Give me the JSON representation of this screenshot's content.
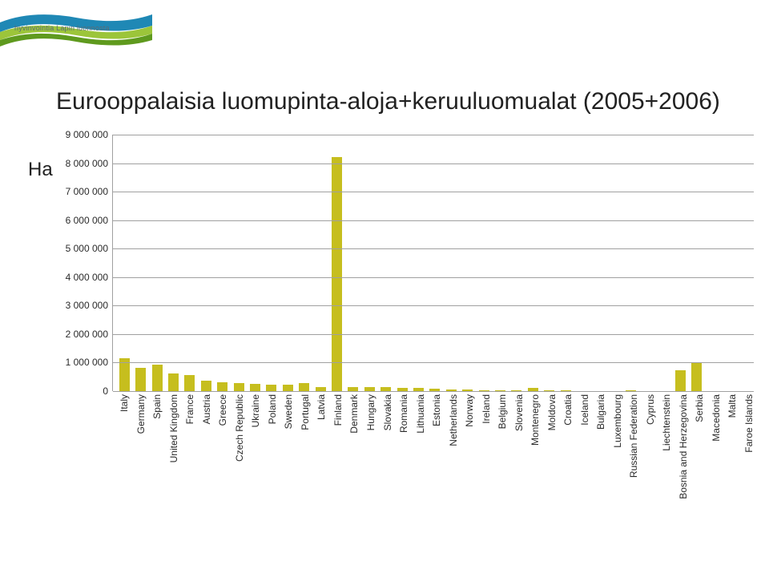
{
  "logo_text": "hyvinvointia Lapin luonnosta",
  "title": "Eurooppalaisia luomupinta-aloja+keruuluomualat (2005+2006)",
  "ylabel": "Ha",
  "chart": {
    "type": "bar",
    "ymax": 9000000,
    "ytick_step": 1000000,
    "ytick_labels": [
      "0",
      "1 000 000",
      "2 000 000",
      "3 000 000",
      "4 000 000",
      "5 000 000",
      "6 000 000",
      "7 000 000",
      "8 000 000",
      "9 000 000"
    ],
    "bar_color": "#c6be1e",
    "grid_color": "#a0a0a0",
    "background_color": "#ffffff",
    "label_fontsize": 12,
    "title_fontsize": 30,
    "categories": [
      "Italy",
      "Germany",
      "Spain",
      "United Kingdom",
      "France",
      "Austria",
      "Greece",
      "Czech Republic",
      "Ukraine",
      "Poland",
      "Sweden",
      "Portugal",
      "Latvia",
      "Finland",
      "Denmark",
      "Hungary",
      "Slovakia",
      "Romania",
      "Lithuania",
      "Estonia",
      "Netherlands",
      "Norway",
      "Ireland",
      "Belgium",
      "Slovenia",
      "Montenegro",
      "Moldova",
      "Croatia",
      "Iceland",
      "Bulgaria",
      "Luxembourg",
      "Russian Federation",
      "Cyprus",
      "Liechtenstein",
      "Bosnia and Herzegovina",
      "Serbia",
      "Macedonia",
      "Malta",
      "Faroe Islands"
    ],
    "values": [
      1150000,
      830000,
      930000,
      620000,
      560000,
      370000,
      300000,
      280000,
      240000,
      220000,
      225000,
      270000,
      150000,
      8200000,
      140000,
      130000,
      130000,
      110000,
      100000,
      75000,
      50000,
      45000,
      40000,
      30000,
      27000,
      100000,
      25000,
      25000,
      12000,
      14000,
      4000,
      40000,
      1800,
      1000,
      730000,
      1020000,
      4000,
      1000,
      500
    ]
  },
  "logo_colors": {
    "blue": "#1f88b5",
    "green_dark": "#5f9a1e",
    "green_light": "#9cc53a"
  }
}
